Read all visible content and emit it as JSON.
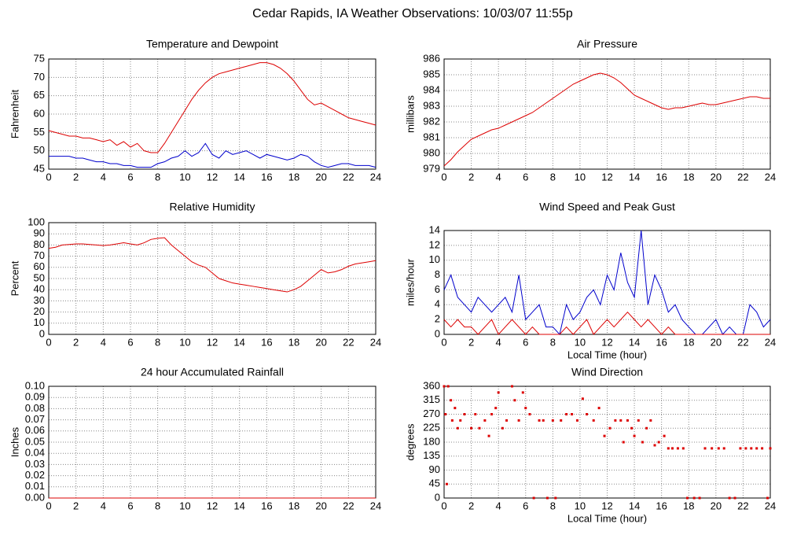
{
  "title": "Cedar Rapids, IA Weather Observations: 10/03/07 11:55p",
  "chart_data": [
    {
      "type": "line",
      "title": "Temperature and Dewpoint",
      "ylabel": "Fahrenheit",
      "x": [
        0,
        0.5,
        1,
        1.5,
        2,
        2.5,
        3,
        3.5,
        4,
        4.5,
        5,
        5.5,
        6,
        6.5,
        7,
        7.5,
        8,
        8.5,
        9,
        9.5,
        10,
        10.5,
        11,
        11.5,
        12,
        12.5,
        13,
        13.5,
        14,
        14.5,
        15,
        15.5,
        16,
        16.5,
        17,
        17.5,
        18,
        18.5,
        19,
        19.5,
        20,
        20.5,
        21,
        21.5,
        22,
        22.5,
        23,
        23.5,
        24
      ],
      "series": [
        {
          "color": "#dd0000",
          "values": [
            55.5,
            55,
            54.5,
            54,
            54,
            53.5,
            53.5,
            53,
            52.5,
            53,
            51.5,
            52.5,
            51,
            52,
            50,
            49.5,
            49.5,
            52,
            55,
            58,
            61,
            64,
            66.5,
            68.5,
            70,
            71,
            71.5,
            72,
            72.5,
            73,
            73.5,
            74,
            74,
            73.5,
            72.5,
            71,
            69,
            66.5,
            64,
            62.5,
            63,
            62,
            61,
            60,
            59,
            58.5,
            58,
            57.5,
            57
          ]
        },
        {
          "color": "#0000cc",
          "values": [
            48.5,
            48.5,
            48.5,
            48.5,
            48,
            48,
            47.5,
            47,
            47,
            46.5,
            46.5,
            46,
            46,
            45.5,
            45.5,
            45.5,
            46.5,
            47,
            48,
            48.5,
            50,
            48.5,
            49.5,
            52,
            49,
            48,
            50,
            49,
            49.5,
            50,
            49,
            48,
            49,
            48.5,
            48,
            47.5,
            48,
            49,
            48.5,
            47,
            46,
            45.5,
            46,
            46.5,
            46.5,
            46,
            46,
            46,
            45.5
          ]
        }
      ],
      "xlim": [
        0,
        24
      ],
      "xticks": [
        0,
        2,
        4,
        6,
        8,
        10,
        12,
        14,
        16,
        18,
        20,
        22,
        24
      ],
      "ylim": [
        45,
        75
      ],
      "yticks": [
        45,
        50,
        55,
        60,
        65,
        70,
        75
      ],
      "grid": true
    },
    {
      "type": "line",
      "title": "Air Pressure",
      "ylabel": "millibars",
      "x": [
        0,
        0.5,
        1,
        1.5,
        2,
        2.5,
        3,
        3.5,
        4,
        4.5,
        5,
        5.5,
        6,
        6.5,
        7,
        7.5,
        8,
        8.5,
        9,
        9.5,
        10,
        10.5,
        11,
        11.5,
        12,
        12.5,
        13,
        13.5,
        14,
        14.5,
        15,
        15.5,
        16,
        16.5,
        17,
        17.5,
        18,
        18.5,
        19,
        19.5,
        20,
        20.5,
        21,
        21.5,
        22,
        22.5,
        23,
        23.5,
        24
      ],
      "series": [
        {
          "color": "#dd0000",
          "values": [
            979.2,
            979.6,
            980.1,
            980.5,
            980.9,
            981.1,
            981.3,
            981.5,
            981.6,
            981.8,
            982.0,
            982.2,
            982.4,
            982.6,
            982.9,
            983.2,
            983.5,
            983.8,
            984.1,
            984.4,
            984.6,
            984.8,
            985.0,
            985.1,
            985.0,
            984.8,
            984.5,
            984.1,
            983.7,
            983.5,
            983.3,
            983.1,
            982.9,
            982.8,
            982.9,
            982.9,
            983.0,
            983.1,
            983.2,
            983.1,
            983.1,
            983.2,
            983.3,
            983.4,
            983.5,
            983.6,
            983.6,
            983.5,
            983.5
          ]
        }
      ],
      "xlim": [
        0,
        24
      ],
      "xticks": [
        0,
        2,
        4,
        6,
        8,
        10,
        12,
        14,
        16,
        18,
        20,
        22,
        24
      ],
      "ylim": [
        979,
        986
      ],
      "yticks": [
        979,
        980,
        981,
        982,
        983,
        984,
        985,
        986
      ],
      "grid": true
    },
    {
      "type": "line",
      "title": "Relative Humidity",
      "ylabel": "Percent",
      "x": [
        0,
        0.5,
        1,
        1.5,
        2,
        2.5,
        3,
        3.5,
        4,
        4.5,
        5,
        5.5,
        6,
        6.5,
        7,
        7.5,
        8,
        8.5,
        9,
        9.5,
        10,
        10.5,
        11,
        11.5,
        12,
        12.5,
        13,
        13.5,
        14,
        14.5,
        15,
        15.5,
        16,
        16.5,
        17,
        17.5,
        18,
        18.5,
        19,
        19.5,
        20,
        20.5,
        21,
        21.5,
        22,
        22.5,
        23,
        23.5,
        24
      ],
      "series": [
        {
          "color": "#dd0000",
          "values": [
            77,
            78,
            80,
            80.5,
            81,
            81,
            80.5,
            80,
            79.5,
            80,
            81,
            82,
            81,
            80,
            82,
            85,
            86,
            86.5,
            80,
            75,
            70,
            65,
            62,
            60,
            55,
            50,
            48,
            46,
            45,
            44,
            43,
            42,
            41,
            40,
            39,
            38,
            40,
            43,
            48,
            53,
            58,
            55,
            56,
            58,
            61,
            63,
            64,
            65,
            66
          ]
        }
      ],
      "xlim": [
        0,
        24
      ],
      "xticks": [
        0,
        2,
        4,
        6,
        8,
        10,
        12,
        14,
        16,
        18,
        20,
        22,
        24
      ],
      "ylim": [
        0,
        100
      ],
      "yticks": [
        0,
        10,
        20,
        30,
        40,
        50,
        60,
        70,
        80,
        90,
        100
      ],
      "grid": true
    },
    {
      "type": "line",
      "title": "Wind Speed and Peak Gust",
      "ylabel": "miles/hour",
      "xlabel": "Local Time (hour)",
      "x": [
        0,
        0.5,
        1,
        1.5,
        2,
        2.5,
        3,
        3.5,
        4,
        4.5,
        5,
        5.5,
        6,
        6.5,
        7,
        7.5,
        8,
        8.5,
        9,
        9.5,
        10,
        10.5,
        11,
        11.5,
        12,
        12.5,
        13,
        13.5,
        14,
        14.5,
        15,
        15.5,
        16,
        16.5,
        17,
        17.5,
        18,
        18.5,
        19,
        19.5,
        20,
        20.5,
        21,
        21.5,
        22,
        22.5,
        23,
        23.5,
        24
      ],
      "series": [
        {
          "color": "#0000cc",
          "values": [
            6,
            8,
            5,
            4,
            3,
            5,
            4,
            3,
            4,
            5,
            3,
            8,
            2,
            3,
            4,
            1,
            1,
            0,
            4,
            2,
            3,
            5,
            6,
            4,
            8,
            6,
            11,
            7,
            5,
            14,
            4,
            8,
            6,
            3,
            4,
            2,
            1,
            0,
            0,
            1,
            2,
            0,
            1,
            0,
            0,
            4,
            3,
            1,
            2
          ]
        },
        {
          "color": "#dd0000",
          "values": [
            2,
            1,
            2,
            1,
            1,
            0,
            1,
            2,
            0,
            1,
            2,
            1,
            0,
            1,
            0,
            0,
            0,
            0,
            1,
            0,
            1,
            2,
            0,
            1,
            2,
            1,
            2,
            3,
            2,
            1,
            2,
            1,
            0,
            1,
            0,
            0,
            0,
            0,
            0,
            0,
            0,
            0,
            0,
            0,
            0,
            0,
            0,
            0,
            0
          ]
        }
      ],
      "xlim": [
        0,
        24
      ],
      "xticks": [
        0,
        2,
        4,
        6,
        8,
        10,
        12,
        14,
        16,
        18,
        20,
        22,
        24
      ],
      "ylim": [
        0,
        14
      ],
      "yticks": [
        0,
        2,
        4,
        6,
        8,
        10,
        12,
        14
      ],
      "grid": true
    },
    {
      "type": "line",
      "title": "24 hour Accumulated Rainfall",
      "ylabel": "Inches",
      "x": [
        0,
        24
      ],
      "series": [
        {
          "color": "#dd0000",
          "values": [
            0,
            0
          ]
        }
      ],
      "xlim": [
        0,
        24
      ],
      "xticks": [
        0,
        2,
        4,
        6,
        8,
        10,
        12,
        14,
        16,
        18,
        20,
        22,
        24
      ],
      "ylim": [
        0,
        0.1
      ],
      "yticks": [
        {
          "value": 0,
          "label": "0.00"
        },
        {
          "value": 0.01,
          "label": "0.01"
        },
        {
          "value": 0.02,
          "label": "0.02"
        },
        {
          "value": 0.03,
          "label": "0.03"
        },
        {
          "value": 0.04,
          "label": "0.04"
        },
        {
          "value": 0.05,
          "label": "0.05"
        },
        {
          "value": 0.06,
          "label": "0.06"
        },
        {
          "value": 0.07,
          "label": "0.07"
        },
        {
          "value": 0.08,
          "label": "0.08"
        },
        {
          "value": 0.09,
          "label": "0.09"
        },
        {
          "value": 0.1,
          "label": "0.10"
        }
      ],
      "grid": true
    },
    {
      "type": "scatter",
      "title": "Wind Direction",
      "ylabel": "degrees",
      "xlabel": "Local Time (hour)",
      "color": "#dd0000",
      "x": [
        0,
        0.1,
        0.2,
        0.3,
        0.5,
        0.6,
        0.8,
        1,
        1.2,
        1.5,
        2,
        2.3,
        2.6,
        3,
        3.3,
        3.5,
        3.8,
        4,
        4.3,
        4.6,
        5,
        5.2,
        5.5,
        5.8,
        6,
        6.3,
        6.6,
        7,
        7.3,
        7.6,
        8,
        8.2,
        8.6,
        9,
        9.4,
        9.8,
        10.2,
        10.5,
        11,
        11.4,
        11.8,
        12.2,
        12.6,
        13,
        13.2,
        13.5,
        13.8,
        14,
        14.3,
        14.6,
        14.9,
        15.2,
        15.5,
        15.8,
        16.2,
        16.5,
        16.8,
        17.2,
        17.6,
        17.9,
        18.4,
        18.8,
        19.2,
        19.7,
        20.2,
        20.6,
        21,
        21.4,
        21.8,
        22.2,
        22.6,
        23,
        23.4,
        23.8,
        24
      ],
      "values": [
        360,
        270,
        45,
        360,
        315,
        250,
        290,
        225,
        250,
        270,
        225,
        270,
        225,
        250,
        200,
        270,
        290,
        340,
        225,
        250,
        360,
        315,
        250,
        340,
        290,
        270,
        0,
        250,
        250,
        0,
        250,
        0,
        250,
        270,
        270,
        250,
        320,
        270,
        250,
        290,
        200,
        225,
        250,
        250,
        180,
        250,
        225,
        200,
        250,
        180,
        225,
        250,
        170,
        180,
        200,
        160,
        160,
        160,
        160,
        0,
        0,
        0,
        160,
        160,
        160,
        160,
        0,
        0,
        160,
        160,
        160,
        160,
        160,
        0,
        160
      ],
      "xlim": [
        0,
        24
      ],
      "xticks": [
        0,
        2,
        4,
        6,
        8,
        10,
        12,
        14,
        16,
        18,
        20,
        22,
        24
      ],
      "ylim": [
        0,
        360
      ],
      "yticks": [
        0,
        45,
        90,
        135,
        180,
        225,
        270,
        315,
        360
      ],
      "grid": true
    }
  ]
}
